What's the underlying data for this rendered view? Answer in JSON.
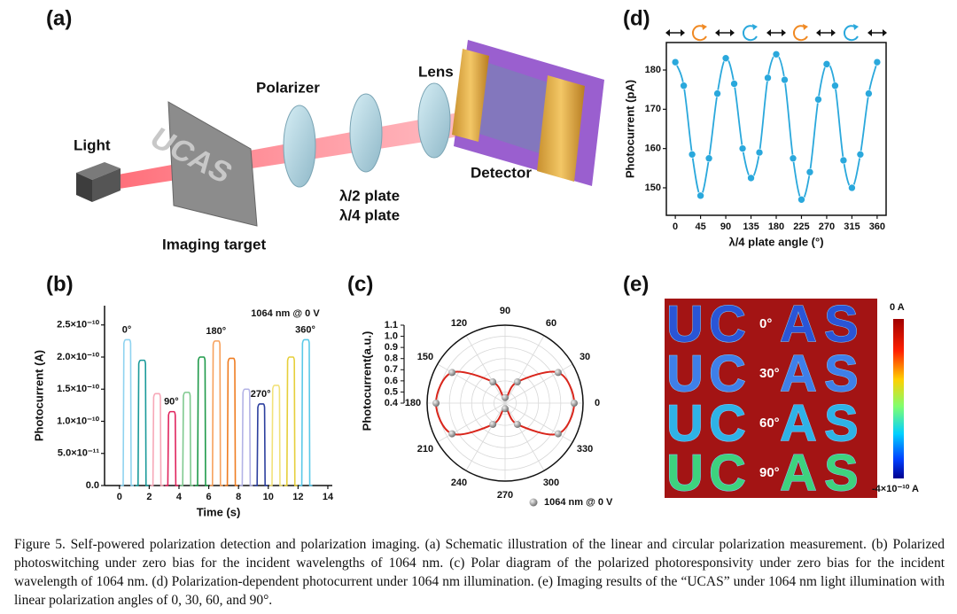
{
  "panel_labels": [
    "(a)",
    "(b)",
    "(c)",
    "(d)",
    "(e)"
  ],
  "schematic": {
    "light": "Light",
    "target": "Imaging target",
    "target_text": "UCAS",
    "polarizer": "Polarizer",
    "half_plate": "λ/2 plate",
    "quarter_plate": "λ/4 plate",
    "lens": "Lens",
    "detector": "Detector"
  },
  "chart_data": [
    {
      "type": "pulse",
      "title": "1064 nm @ 0 V",
      "xlabel": "Time (s)",
      "ylabel": "Photocurrent (A)",
      "x": [
        0.25,
        1.25,
        2.25,
        3.25,
        4.25,
        5.25,
        6.25,
        7.25,
        8.25,
        9.25,
        10.25,
        11.25,
        12.25
      ],
      "values": [
        2.27e-10,
        1.95e-10,
        1.43e-10,
        1.15e-10,
        1.45e-10,
        2e-10,
        2.25e-10,
        1.98e-10,
        1.5e-10,
        1.27e-10,
        1.56e-10,
        2e-10,
        2.27e-10
      ],
      "colors": [
        "#8fd3f0",
        "#1a9a9a",
        "#f7a8b8",
        "#e0245e",
        "#7fc98f",
        "#1f9a4a",
        "#f7a15c",
        "#ef7d22",
        "#b3b3e6",
        "#2c3f9e",
        "#f2e27a",
        "#e6cf3a",
        "#5bc9e8"
      ],
      "pulse_labels": [
        {
          "index": 0,
          "text": "0°"
        },
        {
          "index": 3,
          "text": "90°"
        },
        {
          "index": 6,
          "text": "180°"
        },
        {
          "index": 9,
          "text": "270°"
        },
        {
          "index": 12,
          "text": "360°"
        }
      ],
      "xlim": [
        -1,
        14.3
      ],
      "xticks": [
        0,
        2,
        4,
        6,
        8,
        10,
        12,
        14
      ],
      "ylim": [
        0,
        2.8e-10
      ],
      "yticks": [
        {
          "value": 0,
          "label": "0.0"
        },
        {
          "value": 5e-11,
          "label": "5.0×10⁻¹¹"
        },
        {
          "value": 1e-10,
          "label": "1.0×10⁻¹⁰"
        },
        {
          "value": 1.5e-10,
          "label": "1.5×10⁻¹⁰"
        },
        {
          "value": 2e-10,
          "label": "2.0×10⁻¹⁰"
        },
        {
          "value": 2.5e-10,
          "label": "2.5×10⁻¹⁰"
        }
      ]
    },
    {
      "type": "polar",
      "ylabel": "Photocurrent(a.u.)",
      "legend": "1064 nm @ 0 V",
      "color": "#d9261c",
      "x": [
        0,
        30,
        60,
        90,
        120,
        150,
        180,
        210,
        240,
        270,
        300,
        330
      ],
      "values": [
        1.02,
        0.95,
        0.62,
        0.45,
        0.62,
        0.95,
        1.02,
        0.95,
        0.62,
        0.45,
        0.62,
        0.95
      ],
      "xticks": [
        0,
        30,
        60,
        90,
        120,
        150,
        180,
        210,
        240,
        270,
        300,
        330
      ],
      "ylim": [
        0.4,
        1.1
      ],
      "yticks": [
        0.4,
        0.5,
        0.6,
        0.7,
        0.8,
        0.9,
        {
          "value": 1,
          "label": "1.0"
        },
        1.1
      ]
    },
    {
      "type": "line",
      "xlabel": "λ/4 plate angle (°)",
      "ylabel": "Photocurrent (pA)",
      "color": "#2aa8dc",
      "x": [
        0,
        15,
        30,
        45,
        60,
        75,
        90,
        105,
        120,
        135,
        150,
        165,
        180,
        195,
        210,
        225,
        240,
        255,
        270,
        285,
        300,
        315,
        330,
        345,
        360
      ],
      "values": [
        182,
        176,
        158.5,
        148,
        157.5,
        174,
        183,
        176.5,
        160,
        152.5,
        159,
        178,
        184,
        177.5,
        157.5,
        147,
        154,
        172.5,
        181.5,
        176,
        157,
        150,
        158.5,
        174,
        182
      ],
      "xlim": [
        -16,
        376
      ],
      "xticks": [
        0,
        45,
        90,
        135,
        180,
        225,
        270,
        315,
        360
      ],
      "ylim": [
        143,
        187
      ],
      "yticks": [
        150,
        160,
        170,
        180
      ]
    }
  ],
  "imaging": {
    "letters": [
      "U",
      "C",
      "A",
      "S"
    ],
    "rows": [
      {
        "angle": "0°",
        "color": "#2a55d6"
      },
      {
        "angle": "30°",
        "color": "#3f7fe8"
      },
      {
        "angle": "60°",
        "color": "#2fb2e6"
      },
      {
        "angle": "90°",
        "color": "#3ed27e"
      }
    ],
    "colorbar_top": "0 A",
    "colorbar_bottom": "-4×10⁻¹⁰ A"
  },
  "caption": "Figure 5. Self-powered polarization detection and polarization imaging. (a) Schematic illustration of the linear and circular polarization measurement. (b) Polarized photoswitching under zero bias for the incident wavelengths of 1064 nm. (c) Polar diagram of the polarized photoresponsivity under zero bias for the incident wavelength of 1064 nm. (d) Polarization-dependent photocurrent under 1064 nm illumination. (e) Imaging results of the “UCAS” under 1064 nm light illumination with linear polarization angles of 0, 30, 60, and 90°."
}
